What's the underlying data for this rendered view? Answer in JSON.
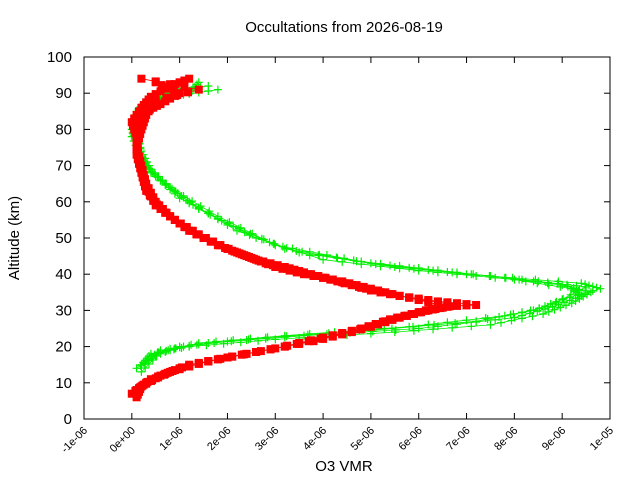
{
  "chart_data": {
    "type": "scatter",
    "title": "Occultations from 2026-08-19",
    "xlabel": "O3 VMR",
    "ylabel": "Altitude (km)",
    "xlim": [
      -1e-06,
      1e-05
    ],
    "ylim": [
      0,
      100
    ],
    "x_ticks": [
      -1e-06,
      0,
      1e-06,
      2e-06,
      3e-06,
      4e-06,
      5e-06,
      6e-06,
      7e-06,
      8e-06,
      9e-06,
      1e-05
    ],
    "x_tick_labels": [
      "-1e-06",
      "0e+00",
      "1e-06",
      "2e-06",
      "3e-06",
      "4e-06",
      "5e-06",
      "6e-06",
      "7e-06",
      "8e-06",
      "9e-06",
      "1e-05"
    ],
    "y_ticks": [
      0,
      10,
      20,
      30,
      40,
      50,
      60,
      70,
      80,
      90,
      100
    ],
    "y_tick_labels": [
      "0",
      "10",
      "20",
      "30",
      "40",
      "50",
      "60",
      "70",
      "80",
      "90",
      "100"
    ],
    "grid": false,
    "legend": "none",
    "colors": {
      "series_green": "#00ee00",
      "series_red": "#ff0000"
    },
    "series": [
      {
        "color": "#00ee00",
        "marker": "plus",
        "profiles": [
          {
            "points": [
              [
                2e-07,
                15
              ],
              [
                4e-07,
                18
              ],
              [
                1.2e-06,
                20
              ],
              [
                3e-06,
                22
              ],
              [
                5.5e-06,
                24
              ],
              [
                7.5e-06,
                26
              ],
              [
                8.6e-06,
                29
              ],
              [
                9.2e-06,
                32
              ],
              [
                9.6e-06,
                35
              ],
              [
                9e-06,
                37
              ],
              [
                7.5e-06,
                39.5
              ],
              [
                5.5e-06,
                42
              ],
              [
                3.5e-06,
                46
              ],
              [
                2.2e-06,
                52
              ],
              [
                1.2e-06,
                60
              ],
              [
                6e-07,
                66
              ],
              [
                3e-07,
                70
              ],
              [
                1e-07,
                76
              ],
              [
                0,
                80
              ],
              [
                1e-07,
                85
              ],
              [
                3e-07,
                88
              ],
              [
                8e-07,
                91
              ],
              [
                1.6e-06,
                92
              ]
            ]
          },
          {
            "points": [
              [
                3e-07,
                16
              ],
              [
                6e-07,
                19
              ],
              [
                1.6e-06,
                21
              ],
              [
                3.6e-06,
                23
              ],
              [
                6e-06,
                25
              ],
              [
                8e-06,
                28
              ],
              [
                8.8e-06,
                31
              ],
              [
                9.4e-06,
                34
              ],
              [
                9.2e-06,
                36
              ],
              [
                8e-06,
                38.5
              ],
              [
                6e-06,
                41
              ],
              [
                4e-06,
                44
              ],
              [
                2.6e-06,
                50
              ],
              [
                1.4e-06,
                58
              ],
              [
                8e-07,
                64
              ],
              [
                4e-07,
                69
              ],
              [
                2e-07,
                74
              ],
              [
                1e-07,
                79
              ],
              [
                2e-07,
                84
              ],
              [
                6e-07,
                88
              ],
              [
                1.2e-06,
                90
              ],
              [
                1.4e-06,
                93
              ]
            ]
          },
          {
            "points": [
              [
                1e-07,
                14
              ],
              [
                5e-07,
                17.5
              ],
              [
                1e-06,
                20
              ],
              [
                2.8e-06,
                22.5
              ],
              [
                5e-06,
                24.5
              ],
              [
                7.2e-06,
                27
              ],
              [
                8.4e-06,
                30
              ],
              [
                9e-06,
                33
              ],
              [
                9.8e-06,
                36
              ],
              [
                9.4e-06,
                37.5
              ],
              [
                7e-06,
                40
              ],
              [
                5e-06,
                43
              ],
              [
                3.2e-06,
                47
              ],
              [
                2e-06,
                54
              ],
              [
                1e-06,
                61
              ],
              [
                5e-07,
                67
              ],
              [
                2e-07,
                72
              ],
              [
                0,
                78
              ],
              [
                1e-07,
                82
              ],
              [
                4e-07,
                87
              ],
              [
                1e-06,
                92
              ]
            ]
          },
          {
            "points": [
              [
                2e-07,
                13
              ],
              [
                6e-07,
                18.5
              ],
              [
                1.4e-06,
                21
              ],
              [
                3.2e-06,
                23
              ],
              [
                5.8e-06,
                25.5
              ],
              [
                7.8e-06,
                28.5
              ],
              [
                8.7e-06,
                31
              ],
              [
                9.5e-06,
                36.5
              ],
              [
                8.5e-06,
                38
              ],
              [
                6.8e-06,
                40.5
              ],
              [
                4.8e-06,
                43.5
              ],
              [
                3e-06,
                48
              ],
              [
                1.8e-06,
                56
              ],
              [
                9e-07,
                63
              ],
              [
                4e-07,
                68
              ],
              [
                2e-07,
                73
              ],
              [
                1e-07,
                81
              ],
              [
                3e-07,
                86
              ],
              [
                8e-07,
                89
              ],
              [
                1.8e-06,
                91
              ]
            ]
          }
        ]
      },
      {
        "color": "#ff0000",
        "marker": "square",
        "profiles": [
          {
            "points": [
              [
                1e-07,
                6
              ],
              [
                2e-07,
                9
              ],
              [
                6e-07,
                12
              ],
              [
                1.2e-06,
                15
              ],
              [
                2e-06,
                17
              ],
              [
                3.2e-06,
                20
              ],
              [
                4.2e-06,
                23
              ],
              [
                5e-06,
                25.5
              ],
              [
                5.6e-06,
                28
              ],
              [
                6.2e-06,
                30
              ],
              [
                6.8e-06,
                31.5
              ],
              [
                6e-06,
                33
              ],
              [
                5.2e-06,
                35
              ],
              [
                4.6e-06,
                37
              ],
              [
                4e-06,
                39
              ],
              [
                3.4e-06,
                41
              ],
              [
                2.8e-06,
                43
              ],
              [
                2.2e-06,
                46
              ],
              [
                1.5e-06,
                50
              ],
              [
                1e-06,
                54
              ],
              [
                6e-07,
                58
              ],
              [
                3e-07,
                63
              ],
              [
                2e-07,
                68
              ],
              [
                1e-07,
                73
              ],
              [
                1e-07,
                78
              ],
              [
                0,
                82
              ],
              [
                2e-07,
                86
              ],
              [
                4e-07,
                89
              ],
              [
                8e-07,
                92
              ],
              [
                1.2e-06,
                94
              ]
            ]
          },
          {
            "points": [
              [
                0,
                7
              ],
              [
                3e-07,
                10
              ],
              [
                8e-07,
                13
              ],
              [
                1.6e-06,
                16
              ],
              [
                2.6e-06,
                18.5
              ],
              [
                3.8e-06,
                21.5
              ],
              [
                4.6e-06,
                24
              ],
              [
                5.3e-06,
                27
              ],
              [
                5.9e-06,
                29
              ],
              [
                6.4e-06,
                31
              ],
              [
                7.2e-06,
                31.5
              ],
              [
                6.4e-06,
                32.5
              ],
              [
                5.6e-06,
                34
              ],
              [
                5e-06,
                36
              ],
              [
                4.4e-06,
                38
              ],
              [
                3.6e-06,
                40
              ],
              [
                3e-06,
                42
              ],
              [
                2.4e-06,
                45
              ],
              [
                1.8e-06,
                48
              ],
              [
                1.2e-06,
                52
              ],
              [
                8e-07,
                56
              ],
              [
                5e-07,
                60
              ],
              [
                3e-07,
                65
              ],
              [
                2e-07,
                70
              ],
              [
                1e-07,
                75
              ],
              [
                2e-07,
                80
              ],
              [
                3e-07,
                84
              ],
              [
                5e-07,
                88
              ],
              [
                1.4e-06,
                91
              ],
              [
                2e-07,
                94
              ]
            ]
          },
          {
            "points": [
              [
                1e-07,
                8
              ],
              [
                4e-07,
                11
              ],
              [
                1e-06,
                14
              ],
              [
                1.8e-06,
                16.5
              ],
              [
                3e-06,
                19.5
              ],
              [
                4e-06,
                22.5
              ],
              [
                4.8e-06,
                25
              ],
              [
                5.4e-06,
                27.5
              ],
              [
                6e-06,
                29.5
              ],
              [
                6.6e-06,
                31
              ],
              [
                5.8e-06,
                33.5
              ],
              [
                5e-06,
                35.5
              ],
              [
                4.2e-06,
                38.5
              ],
              [
                3.6e-06,
                40.5
              ],
              [
                3.2e-06,
                42
              ],
              [
                2.6e-06,
                44
              ],
              [
                2e-06,
                47
              ],
              [
                1.4e-06,
                51
              ],
              [
                9e-07,
                55
              ],
              [
                5e-07,
                59
              ],
              [
                3e-07,
                64
              ],
              [
                2e-07,
                69
              ],
              [
                1e-07,
                76
              ],
              [
                1e-07,
                81
              ],
              [
                3e-07,
                85
              ],
              [
                6e-07,
                87
              ],
              [
                1e-06,
                90
              ],
              [
                5e-07,
                93
              ]
            ]
          }
        ]
      }
    ]
  }
}
